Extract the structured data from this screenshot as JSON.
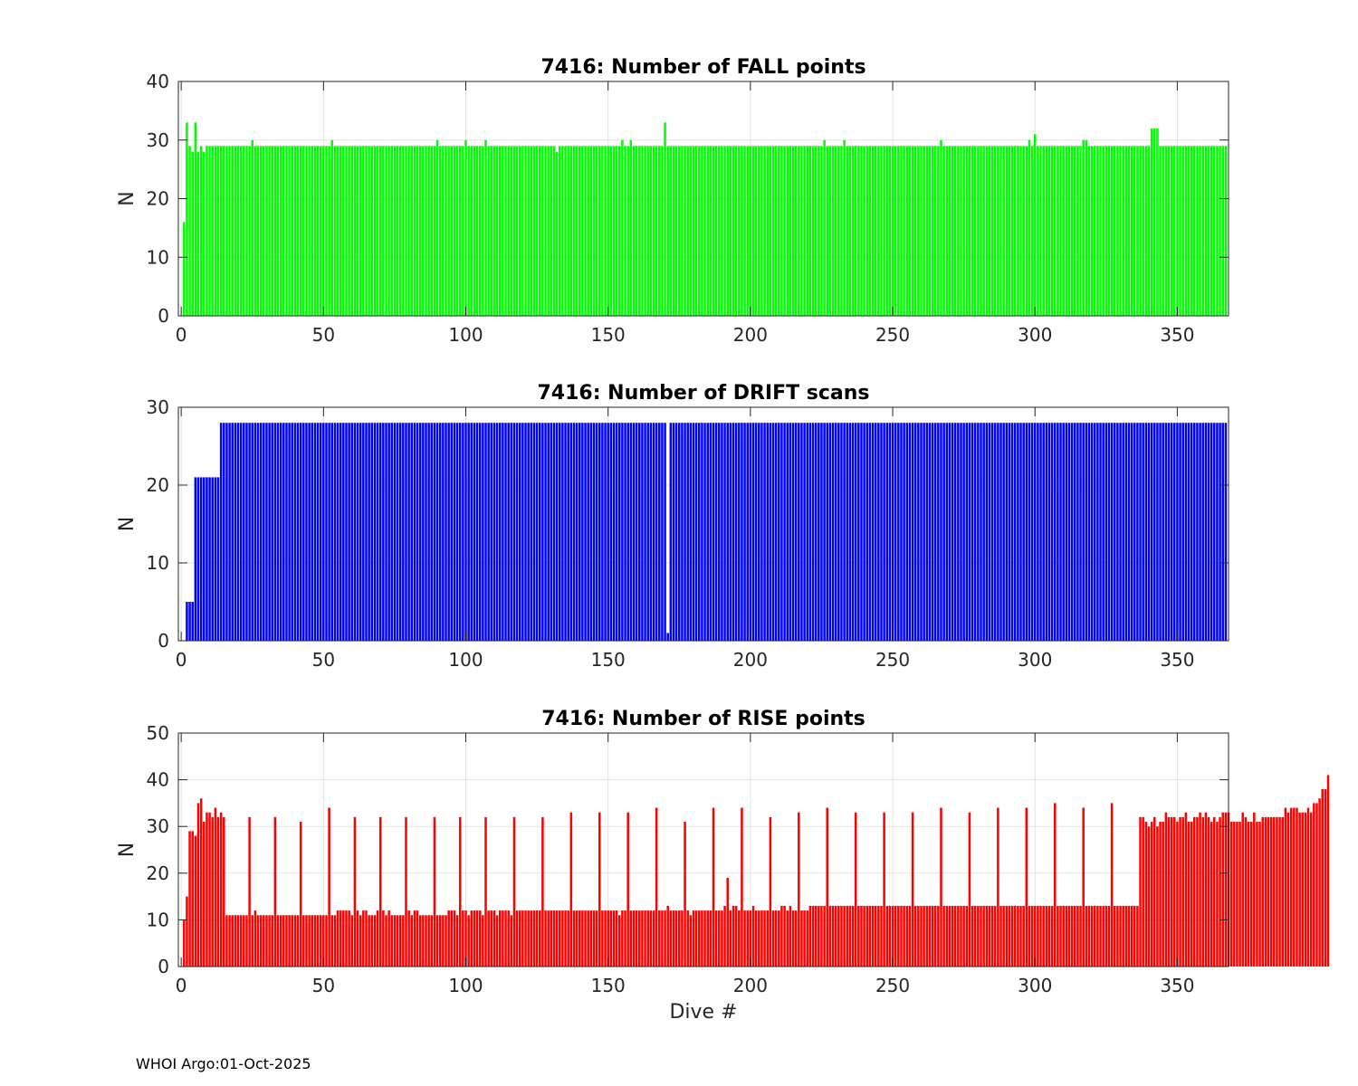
{
  "footer": "WHOI Argo:01-Oct-2025",
  "chart_data": [
    {
      "type": "bar",
      "title": "7416: Number of FALL points",
      "xlabel": "",
      "ylabel": "N",
      "color": "#00ff00",
      "xlim": [
        -1,
        368
      ],
      "ylim": [
        0,
        40
      ],
      "xticks": [
        0,
        50,
        100,
        150,
        200,
        250,
        300,
        350
      ],
      "yticks": [
        0,
        10,
        20,
        30,
        40
      ],
      "base": 29,
      "x_range": [
        1,
        367
      ],
      "overrides": {
        "1": 16,
        "2": 33,
        "3": 29,
        "4": 28,
        "5": 33,
        "6": 28,
        "7": 29,
        "8": 28,
        "25": 30,
        "53": 30,
        "90": 30,
        "100": 30,
        "107": 30,
        "132": 28,
        "155": 30,
        "158": 30,
        "170": 33,
        "226": 30,
        "233": 30,
        "267": 30,
        "298": 30,
        "300": 31,
        "317": 30,
        "318": 30,
        "341": 32,
        "342": 32,
        "343": 32
      }
    },
    {
      "type": "bar",
      "title": "7416: Number of DRIFT scans",
      "xlabel": "",
      "ylabel": "N",
      "color": "#0000ff",
      "xlim": [
        -1,
        368
      ],
      "ylim": [
        0,
        30
      ],
      "xticks": [
        0,
        50,
        100,
        150,
        200,
        250,
        300,
        350
      ],
      "yticks": [
        0,
        10,
        20,
        30
      ],
      "base": 28,
      "x_range": [
        2,
        367
      ],
      "overrides": {
        "2": 5,
        "3": 5,
        "4": 5,
        "5": 21,
        "6": 21,
        "7": 21,
        "8": 21,
        "9": 21,
        "10": 21,
        "11": 21,
        "12": 21,
        "13": 21,
        "171": 1
      }
    },
    {
      "type": "bar",
      "title": "7416: Number of RISE points",
      "xlabel": "Dive #",
      "ylabel": "N",
      "color": "#ff0000",
      "xlim": [
        -1,
        368
      ],
      "ylim": [
        0,
        50
      ],
      "xticks": [
        0,
        50,
        100,
        150,
        200,
        250,
        300,
        350
      ],
      "yticks": [
        0,
        10,
        20,
        30,
        40,
        50
      ],
      "values": [
        10,
        15,
        29,
        29,
        28,
        35,
        36,
        31,
        33,
        33,
        32,
        34,
        32,
        33,
        32,
        11,
        11,
        11,
        11,
        11,
        11,
        11,
        11,
        32,
        11,
        12,
        11,
        11,
        11,
        11,
        11,
        11,
        32,
        11,
        11,
        11,
        11,
        11,
        11,
        11,
        11,
        31,
        11,
        11,
        11,
        11,
        11,
        11,
        11,
        11,
        11,
        34,
        11,
        11,
        12,
        12,
        12,
        12,
        12,
        11,
        32,
        12,
        11,
        12,
        12,
        11,
        11,
        11,
        12,
        32,
        12,
        11,
        12,
        11,
        11,
        11,
        11,
        11,
        32,
        12,
        11,
        12,
        12,
        11,
        11,
        11,
        11,
        11,
        32,
        11,
        11,
        11,
        11,
        12,
        12,
        12,
        11,
        32,
        12,
        12,
        11,
        12,
        12,
        12,
        12,
        11,
        32,
        12,
        12,
        12,
        11,
        12,
        12,
        12,
        12,
        11,
        32,
        12,
        12,
        12,
        12,
        12,
        12,
        12,
        12,
        12,
        32,
        12,
        12,
        12,
        12,
        12,
        12,
        12,
        12,
        12,
        33,
        12,
        12,
        12,
        12,
        12,
        12,
        12,
        12,
        12,
        33,
        12,
        12,
        12,
        12,
        12,
        12,
        11,
        12,
        12,
        33,
        12,
        12,
        12,
        12,
        12,
        12,
        12,
        12,
        12,
        34,
        12,
        12,
        12,
        13,
        12,
        12,
        12,
        12,
        12,
        31,
        12,
        11,
        12,
        12,
        12,
        12,
        12,
        12,
        12,
        34,
        12,
        12,
        12,
        13,
        19,
        12,
        13,
        13,
        12,
        34,
        12,
        12,
        12,
        13,
        12,
        12,
        12,
        12,
        12,
        32,
        12,
        12,
        12,
        13,
        13,
        12,
        13,
        12,
        12,
        33,
        12,
        12,
        12,
        13,
        13,
        13,
        13,
        13,
        13,
        34,
        13,
        13,
        13,
        13,
        13,
        13,
        13,
        13,
        13,
        33,
        13,
        13,
        13,
        13,
        13,
        13,
        13,
        13,
        13,
        33,
        13,
        13,
        13,
        13,
        13,
        13,
        13,
        13,
        13,
        33,
        13,
        13,
        13,
        13,
        13,
        13,
        13,
        13,
        13,
        34,
        13,
        13,
        13,
        13,
        13,
        13,
        13,
        13,
        13,
        33,
        13,
        13,
        13,
        13,
        13,
        13,
        13,
        13,
        13,
        34,
        13,
        13,
        13,
        13,
        13,
        13,
        13,
        13,
        13,
        34,
        13,
        13,
        13,
        13,
        13,
        13,
        13,
        13,
        13,
        35,
        13,
        13,
        13,
        13,
        13,
        13,
        13,
        13,
        13,
        34,
        13,
        13,
        13,
        13,
        13,
        13,
        13,
        13,
        13,
        35,
        13,
        13,
        13,
        13,
        13,
        13,
        13,
        13,
        13,
        32,
        32,
        31,
        30,
        31,
        32,
        30,
        31,
        31,
        33,
        32,
        32,
        32,
        31,
        32,
        32,
        33,
        31,
        31,
        32,
        32,
        33,
        32,
        33,
        32,
        31,
        32,
        31,
        32,
        33,
        33,
        33,
        31,
        31,
        31,
        31,
        33,
        32,
        31,
        31,
        33,
        31,
        31,
        32,
        32,
        32,
        32,
        32,
        32,
        32,
        32,
        34,
        33,
        34,
        34,
        34,
        33,
        33,
        33,
        34,
        33,
        35,
        35,
        36,
        38,
        38,
        41
      ]
    }
  ]
}
